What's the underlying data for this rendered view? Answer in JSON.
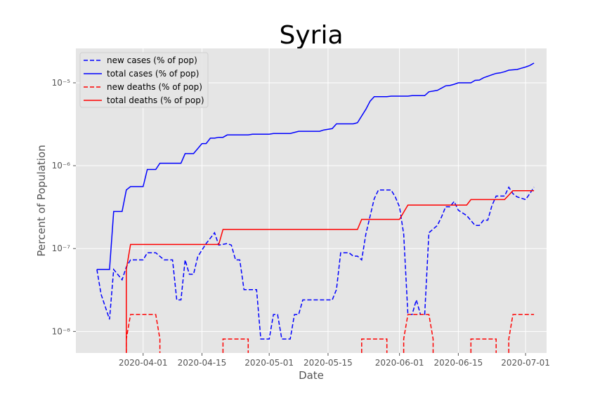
{
  "chart_data": {
    "type": "line",
    "title": "Syria",
    "xlabel": "Date",
    "ylabel": "Percent of Population",
    "yscale": "log",
    "ylim": [
      5.5e-09,
      2.6e-05
    ],
    "yticks": [
      {
        "value": 1e-08,
        "label": "10⁻⁸"
      },
      {
        "value": 1e-07,
        "label": "10⁻⁷"
      },
      {
        "value": 1e-06,
        "label": "10⁻⁶"
      },
      {
        "value": 1e-05,
        "label": "10⁻⁵"
      }
    ],
    "xlim": [
      "2020-03-16",
      "2020-07-06"
    ],
    "xticks": [
      "2020-04-01",
      "2020-04-15",
      "2020-05-01",
      "2020-05-15",
      "2020-06-01",
      "2020-06-15",
      "2020-07-01"
    ],
    "grid": true,
    "legend_position": "top-left",
    "background": "#e5e5e5",
    "series": [
      {
        "name": "new cases (% of pop)",
        "color": "#0000ff",
        "dash": "dashed",
        "points": [
          [
            "2020-03-21",
            5.6e-08
          ],
          [
            "2020-03-22",
            2.8e-08
          ],
          [
            "2020-03-24",
            1.4e-08
          ],
          [
            "2020-03-25",
            5.6e-08
          ],
          [
            "2020-03-27",
            4.2e-08
          ],
          [
            "2020-03-28",
            6e-08
          ],
          [
            "2020-03-29",
            7.3e-08
          ],
          [
            "2020-04-01",
            7.3e-08
          ],
          [
            "2020-04-02",
            8.9e-08
          ],
          [
            "2020-04-04",
            8.9e-08
          ],
          [
            "2020-04-06",
            7.3e-08
          ],
          [
            "2020-04-08",
            7.3e-08
          ],
          [
            "2020-04-09",
            2.4e-08
          ],
          [
            "2020-04-10",
            2.4e-08
          ],
          [
            "2020-04-11",
            7.3e-08
          ],
          [
            "2020-04-12",
            4.9e-08
          ],
          [
            "2020-04-13",
            4.9e-08
          ],
          [
            "2020-04-14",
            8e-08
          ],
          [
            "2020-04-16",
            1.15e-07
          ],
          [
            "2020-04-18",
            1.55e-07
          ],
          [
            "2020-04-19",
            1.1e-07
          ],
          [
            "2020-04-21",
            1.15e-07
          ],
          [
            "2020-04-22",
            1.1e-07
          ],
          [
            "2020-04-23",
            7.3e-08
          ],
          [
            "2020-04-24",
            7.3e-08
          ],
          [
            "2020-04-25",
            3.2e-08
          ],
          [
            "2020-04-28",
            3.2e-08
          ],
          [
            "2020-04-29",
            8.1e-09
          ],
          [
            "2020-05-01",
            8.1e-09
          ],
          [
            "2020-05-02",
            1.6e-08
          ],
          [
            "2020-05-03",
            1.6e-08
          ],
          [
            "2020-05-04",
            8.1e-09
          ],
          [
            "2020-05-06",
            8.1e-09
          ],
          [
            "2020-05-07",
            1.6e-08
          ],
          [
            "2020-05-08",
            1.6e-08
          ],
          [
            "2020-05-09",
            2.4e-08
          ],
          [
            "2020-05-16",
            2.4e-08
          ],
          [
            "2020-05-17",
            3.2e-08
          ],
          [
            "2020-05-18",
            8.9e-08
          ],
          [
            "2020-05-20",
            8.9e-08
          ],
          [
            "2020-05-21",
            8.1e-08
          ],
          [
            "2020-05-22",
            8.1e-08
          ],
          [
            "2020-05-23",
            7.3e-08
          ],
          [
            "2020-05-24",
            1.5e-07
          ],
          [
            "2020-05-26",
            4e-07
          ],
          [
            "2020-05-27",
            5.1e-07
          ],
          [
            "2020-05-30",
            5.1e-07
          ],
          [
            "2020-05-31",
            4.2e-07
          ],
          [
            "2020-06-01",
            3.2e-07
          ],
          [
            "2020-06-02",
            1.5e-07
          ],
          [
            "2020-06-03",
            1.6e-08
          ],
          [
            "2020-06-04",
            1.6e-08
          ],
          [
            "2020-06-05",
            2.4e-08
          ],
          [
            "2020-06-06",
            1.6e-08
          ],
          [
            "2020-06-07",
            1.6e-08
          ],
          [
            "2020-06-08",
            1.55e-07
          ],
          [
            "2020-06-10",
            1.9e-07
          ],
          [
            "2020-06-11",
            2.4e-07
          ],
          [
            "2020-06-12",
            3.2e-07
          ],
          [
            "2020-06-13",
            3.2e-07
          ],
          [
            "2020-06-14",
            3.7e-07
          ],
          [
            "2020-06-15",
            2.9e-07
          ],
          [
            "2020-06-17",
            2.5e-07
          ],
          [
            "2020-06-19",
            1.9e-07
          ],
          [
            "2020-06-20",
            1.9e-07
          ],
          [
            "2020-06-21",
            2.2e-07
          ],
          [
            "2020-06-22",
            2.2e-07
          ],
          [
            "2020-06-23",
            3.3e-07
          ],
          [
            "2020-06-24",
            4.3e-07
          ],
          [
            "2020-06-26",
            4.3e-07
          ],
          [
            "2020-06-27",
            5.5e-07
          ],
          [
            "2020-06-28",
            4.6e-07
          ],
          [
            "2020-06-29",
            4.2e-07
          ],
          [
            "2020-07-01",
            3.9e-07
          ],
          [
            "2020-07-02",
            4.6e-07
          ],
          [
            "2020-07-03",
            5.5e-07
          ]
        ]
      },
      {
        "name": "total cases (% of pop)",
        "color": "#0000ff",
        "dash": "solid",
        "points": [
          [
            "2020-03-21",
            5.6e-08
          ],
          [
            "2020-03-24",
            5.6e-08
          ],
          [
            "2020-03-25",
            2.8e-07
          ],
          [
            "2020-03-27",
            2.8e-07
          ],
          [
            "2020-03-28",
            5.1e-07
          ],
          [
            "2020-03-29",
            5.6e-07
          ],
          [
            "2020-04-01",
            5.6e-07
          ],
          [
            "2020-04-02",
            9e-07
          ],
          [
            "2020-04-04",
            9e-07
          ],
          [
            "2020-04-05",
            1.07e-06
          ],
          [
            "2020-04-10",
            1.07e-06
          ],
          [
            "2020-04-11",
            1.4e-06
          ],
          [
            "2020-04-13",
            1.4e-06
          ],
          [
            "2020-04-15",
            1.85e-06
          ],
          [
            "2020-04-16",
            1.85e-06
          ],
          [
            "2020-04-17",
            2.15e-06
          ],
          [
            "2020-04-18",
            2.15e-06
          ],
          [
            "2020-04-19",
            2.2e-06
          ],
          [
            "2020-04-20",
            2.2e-06
          ],
          [
            "2020-04-21",
            2.35e-06
          ],
          [
            "2020-04-26",
            2.35e-06
          ],
          [
            "2020-04-27",
            2.4e-06
          ],
          [
            "2020-05-01",
            2.4e-06
          ],
          [
            "2020-05-02",
            2.45e-06
          ],
          [
            "2020-05-06",
            2.45e-06
          ],
          [
            "2020-05-08",
            2.6e-06
          ],
          [
            "2020-05-13",
            2.6e-06
          ],
          [
            "2020-05-14",
            2.7e-06
          ],
          [
            "2020-05-16",
            2.8e-06
          ],
          [
            "2020-05-17",
            3.2e-06
          ],
          [
            "2020-05-21",
            3.2e-06
          ],
          [
            "2020-05-22",
            3.3e-06
          ],
          [
            "2020-05-24",
            4.8e-06
          ],
          [
            "2020-05-25",
            6e-06
          ],
          [
            "2020-05-26",
            6.8e-06
          ],
          [
            "2020-05-29",
            6.8e-06
          ],
          [
            "2020-05-30",
            6.9e-06
          ],
          [
            "2020-06-03",
            6.9e-06
          ],
          [
            "2020-06-04",
            7e-06
          ],
          [
            "2020-06-07",
            7e-06
          ],
          [
            "2020-06-08",
            7.8e-06
          ],
          [
            "2020-06-10",
            8.1e-06
          ],
          [
            "2020-06-12",
            9.2e-06
          ],
          [
            "2020-06-13",
            9.3e-06
          ],
          [
            "2020-06-14",
            9.6e-06
          ],
          [
            "2020-06-15",
            1e-05
          ],
          [
            "2020-06-18",
            1e-05
          ],
          [
            "2020-06-19",
            1.07e-05
          ],
          [
            "2020-06-20",
            1.08e-05
          ],
          [
            "2020-06-21",
            1.15e-05
          ],
          [
            "2020-06-23",
            1.25e-05
          ],
          [
            "2020-06-24",
            1.3e-05
          ],
          [
            "2020-06-25",
            1.32e-05
          ],
          [
            "2020-06-26",
            1.36e-05
          ],
          [
            "2020-06-27",
            1.42e-05
          ],
          [
            "2020-06-29",
            1.45e-05
          ],
          [
            "2020-06-30",
            1.5e-05
          ],
          [
            "2020-07-01",
            1.55e-05
          ],
          [
            "2020-07-02",
            1.62e-05
          ],
          [
            "2020-07-03",
            1.73e-05
          ]
        ]
      },
      {
        "name": "new deaths (% of pop)",
        "color": "#ff0000",
        "dash": "dashed",
        "segments": [
          [
            [
              "2020-03-28",
              5.5e-09
            ],
            [
              "2020-03-28",
              8.1e-09
            ],
            [
              "2020-03-29",
              1.6e-08
            ],
            [
              "2020-04-04",
              1.6e-08
            ],
            [
              "2020-04-05",
              8.1e-09
            ],
            [
              "2020-04-05",
              5.5e-09
            ]
          ],
          [
            [
              "2020-04-20",
              5.5e-09
            ],
            [
              "2020-04-20",
              8.1e-09
            ],
            [
              "2020-04-26",
              8.1e-09
            ],
            [
              "2020-04-26",
              5.5e-09
            ]
          ],
          [
            [
              "2020-05-23",
              5.5e-09
            ],
            [
              "2020-05-23",
              8.1e-09
            ],
            [
              "2020-05-29",
              8.1e-09
            ],
            [
              "2020-05-29",
              5.5e-09
            ]
          ],
          [
            [
              "2020-06-02",
              5.5e-09
            ],
            [
              "2020-06-02",
              8.1e-09
            ],
            [
              "2020-06-03",
              1.6e-08
            ],
            [
              "2020-06-08",
              1.6e-08
            ],
            [
              "2020-06-09",
              8.1e-09
            ],
            [
              "2020-06-09",
              5.5e-09
            ]
          ],
          [
            [
              "2020-06-18",
              5.5e-09
            ],
            [
              "2020-06-18",
              8.1e-09
            ],
            [
              "2020-06-24",
              8.1e-09
            ],
            [
              "2020-06-24",
              5.5e-09
            ]
          ],
          [
            [
              "2020-06-27",
              5.5e-09
            ],
            [
              "2020-06-27",
              8.1e-09
            ],
            [
              "2020-06-28",
              1.6e-08
            ],
            [
              "2020-07-03",
              1.6e-08
            ]
          ]
        ]
      },
      {
        "name": "total deaths (% of pop)",
        "color": "#ff0000",
        "dash": "solid",
        "points": [
          [
            "2020-03-28",
            5.5e-09
          ],
          [
            "2020-03-28",
            5.6e-08
          ],
          [
            "2020-03-29",
            1.12e-07
          ],
          [
            "2020-04-19",
            1.12e-07
          ],
          [
            "2020-04-20",
            1.7e-07
          ],
          [
            "2020-05-22",
            1.7e-07
          ],
          [
            "2020-05-23",
            2.25e-07
          ],
          [
            "2020-06-01",
            2.25e-07
          ],
          [
            "2020-06-03",
            3.35e-07
          ],
          [
            "2020-06-17",
            3.35e-07
          ],
          [
            "2020-06-18",
            3.9e-07
          ],
          [
            "2020-06-26",
            3.9e-07
          ],
          [
            "2020-06-28",
            5e-07
          ],
          [
            "2020-07-03",
            5e-07
          ]
        ]
      }
    ]
  }
}
